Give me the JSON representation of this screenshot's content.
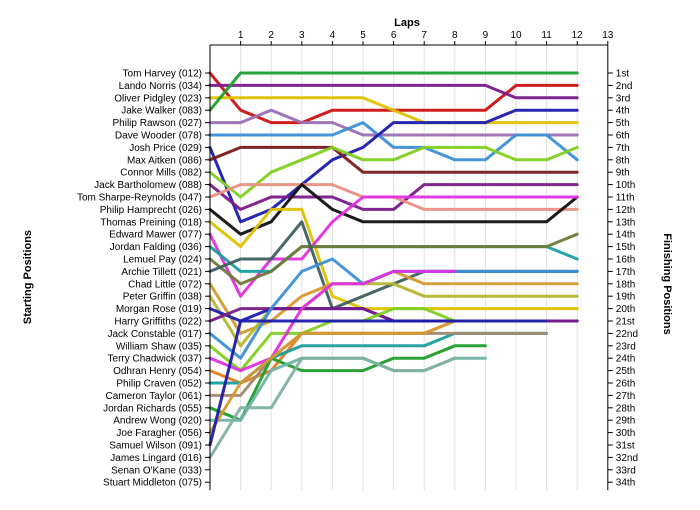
{
  "chart_data": {
    "type": "line",
    "title": "Laps",
    "ylabel_left": "Starting Positions",
    "ylabel_right": "Finishing Positions",
    "laps": [
      1,
      2,
      3,
      4,
      5,
      6,
      7,
      8,
      9,
      10,
      11,
      12,
      13
    ],
    "finishing_labels": [
      "1st",
      "2nd",
      "3rd",
      "4th",
      "5th",
      "6th",
      "7th",
      "8th",
      "9th",
      "10th",
      "11th",
      "12th",
      "13th",
      "14th",
      "15th",
      "16th",
      "17th",
      "18th",
      "19th",
      "20th",
      "21st",
      "22nd",
      "23rd",
      "24th",
      "25th",
      "26th",
      "27th",
      "28th",
      "29th",
      "30th",
      "31st",
      "32nd",
      "33rd",
      "34th"
    ],
    "drivers": [
      {
        "name": "Tom Harvey (012)",
        "color": "#cc1111",
        "positions": [
          1,
          4,
          5,
          5,
          4,
          4,
          4,
          4,
          4,
          4,
          2,
          2,
          2
        ]
      },
      {
        "name": "Lando Norris (034)",
        "color": "#7a1a8a",
        "positions": [
          2,
          2,
          2,
          2,
          2,
          2,
          2,
          2,
          2,
          2,
          3,
          3,
          3
        ]
      },
      {
        "name": "Oliver Pidgley (023)",
        "color": "#e0c000",
        "positions": [
          3,
          3,
          3,
          3,
          3,
          3,
          4,
          5,
          5,
          5,
          5,
          5,
          5
        ]
      },
      {
        "name": "Jake Walker (083)",
        "color": "#1d9e2a",
        "positions": [
          4,
          1,
          1,
          1,
          1,
          1,
          1,
          1,
          1,
          1,
          1,
          1,
          1
        ]
      },
      {
        "name": "Philip Rawson (027)",
        "color": "#9a6fb5",
        "positions": [
          5,
          5,
          4,
          5,
          5,
          6,
          6,
          6,
          6,
          6,
          6,
          6,
          6
        ]
      },
      {
        "name": "Dave Wooder (078)",
        "color": "#3b8fd6",
        "positions": [
          6,
          6,
          6,
          6,
          6,
          5,
          7,
          7,
          8,
          8,
          6,
          6,
          8
        ]
      },
      {
        "name": "Josh Price (029)",
        "color": "#1b1bb0",
        "positions": [
          7,
          13,
          12,
          10,
          8,
          7,
          5,
          5,
          5,
          5,
          4,
          4,
          4
        ]
      },
      {
        "name": "Max Aitken (086)",
        "color": "#7a1a1a",
        "positions": [
          8,
          7,
          7,
          7,
          7,
          9,
          9,
          9,
          9,
          9,
          9,
          9,
          9
        ]
      },
      {
        "name": "Connor Mills (082)",
        "color": "#80d020",
        "positions": [
          9,
          11,
          9,
          8,
          7,
          8,
          8,
          7,
          7,
          7,
          8,
          8,
          7
        ]
      },
      {
        "name": "Jack Bartholomew (088)",
        "color": "#7a1a8a",
        "positions": [
          10,
          12,
          11,
          11,
          11,
          12,
          12,
          10,
          10,
          10,
          10,
          10,
          10
        ]
      },
      {
        "name": "Tom Sharpe-Reynolds (047)",
        "color": "#e89080",
        "positions": [
          11,
          10,
          10,
          10,
          10,
          11,
          11,
          12,
          12,
          12,
          12,
          12,
          12
        ]
      },
      {
        "name": "Philip Hamprecht (026)",
        "color": "#101010",
        "positions": [
          12,
          14,
          13,
          10,
          12,
          13,
          13,
          13,
          13,
          13,
          13,
          13,
          11
        ]
      },
      {
        "name": "Thomas Preining (018)",
        "color": "#e0c000",
        "positions": [
          13,
          15,
          12,
          12,
          19,
          20,
          20,
          20,
          20,
          20,
          20,
          20,
          20
        ]
      },
      {
        "name": "Edward Mawer (077)",
        "color": "#e030e0",
        "positions": [
          14,
          19,
          16,
          16,
          13,
          11,
          11,
          11,
          11,
          11,
          11,
          11,
          11
        ]
      },
      {
        "name": "Jordan Falding (036)",
        "color": "#1c9e9e",
        "positions": [
          15,
          17,
          17,
          15,
          15,
          15,
          15,
          15,
          15,
          15,
          15,
          15,
          16
        ]
      },
      {
        "name": "Lemuel Pay (024)",
        "color": "#707a3a",
        "positions": [
          16,
          18,
          17,
          15,
          15,
          15,
          15,
          15,
          15,
          15,
          15,
          15,
          14
        ]
      },
      {
        "name": "Archie Tillett (021)",
        "color": "#3e5f5f",
        "positions": [
          17,
          16,
          16,
          13,
          20,
          19,
          18,
          17,
          17,
          17,
          17,
          17,
          17
        ]
      },
      {
        "name": "Chad Little (072)",
        "color": "#d49a30",
        "positions": [
          18,
          22,
          21,
          19,
          18,
          18,
          17,
          18,
          18,
          18,
          18,
          18,
          18
        ]
      },
      {
        "name": "Peter Griffin (038)",
        "color": "#b5b530",
        "positions": [
          19,
          23,
          20,
          20,
          18,
          18,
          18,
          19,
          19,
          19,
          19,
          19,
          19
        ]
      },
      {
        "name": "Morgan Rose (019)",
        "color": "#1b1bb0",
        "positions": [
          20,
          21,
          20,
          20,
          20,
          20,
          21,
          21,
          21,
          21,
          21,
          21,
          21
        ]
      },
      {
        "name": "Harry Griffiths (022)",
        "color": "#7a1a8a",
        "positions": [
          21,
          20,
          20,
          20,
          20,
          20,
          21,
          21,
          21,
          21,
          21,
          21,
          21
        ]
      },
      {
        "name": "Jack Constable (017)",
        "color": "#3b8fd6",
        "positions": [
          22,
          24,
          20,
          17,
          16,
          18,
          17,
          17,
          17,
          17,
          17,
          17,
          17
        ]
      },
      {
        "name": "William Shaw (035)",
        "color": "#80d020",
        "positions": [
          23,
          25,
          22,
          22,
          21,
          21,
          20,
          20,
          21,
          null,
          null,
          null,
          null
        ]
      },
      {
        "name": "Terry Chadwick (037)",
        "color": "#e030e0",
        "positions": [
          24,
          25,
          24,
          20,
          18,
          18,
          17,
          17,
          17,
          null,
          null,
          null,
          null
        ]
      },
      {
        "name": "Odhran Henry (054)",
        "color": "#e87c20",
        "positions": [
          25,
          26,
          25,
          22,
          22,
          22,
          22,
          22,
          21,
          21,
          21,
          21,
          null
        ]
      },
      {
        "name": "Philip Craven (052)",
        "color": "#1c9e9e",
        "positions": [
          26,
          26,
          24,
          23,
          23,
          23,
          23,
          23,
          22,
          22,
          22,
          22,
          null
        ]
      },
      {
        "name": "Cameron Taylor (061)",
        "color": "#a08a70",
        "positions": [
          27,
          27,
          24,
          22,
          22,
          22,
          22,
          22,
          22,
          22,
          22,
          22,
          null
        ]
      },
      {
        "name": "Jordan Richards (055)",
        "color": "#1d9e2a",
        "positions": [
          28,
          29,
          24,
          25,
          25,
          25,
          24,
          24,
          23,
          23,
          null,
          null,
          null
        ]
      },
      {
        "name": "Andrew Wong (020)",
        "color": "#6fb5a8",
        "positions": [
          29,
          29,
          25,
          24,
          24,
          24,
          25,
          25,
          24,
          24,
          null,
          null,
          null
        ]
      },
      {
        "name": "Joe Faragher (056)",
        "color": "#d49a30",
        "positions": [
          30,
          26,
          24,
          22,
          22,
          22,
          22,
          22,
          21,
          21,
          21,
          21,
          null
        ]
      },
      {
        "name": "Samuel Wilson (091)",
        "color": "#1b1bb0",
        "positions": [
          31,
          21,
          21,
          21,
          21,
          21,
          21,
          21,
          21,
          21,
          21,
          21,
          null
        ]
      },
      {
        "name": "James Lingard (016)",
        "color": "#80b0a0",
        "positions": [
          32,
          28,
          28,
          24,
          24,
          24,
          25,
          25,
          24,
          null,
          null,
          null,
          null
        ]
      },
      {
        "name": "Senan O'Kane (033)",
        "color": "#ffffff",
        "positions": [
          33,
          null,
          null,
          null,
          null,
          null,
          null,
          null,
          null,
          null,
          null,
          null,
          null
        ]
      },
      {
        "name": "Stuart Middleton (075)",
        "color": "#ffffff",
        "positions": [
          34,
          null,
          null,
          null,
          null,
          null,
          null,
          null,
          null,
          null,
          null,
          null,
          null
        ]
      }
    ]
  }
}
